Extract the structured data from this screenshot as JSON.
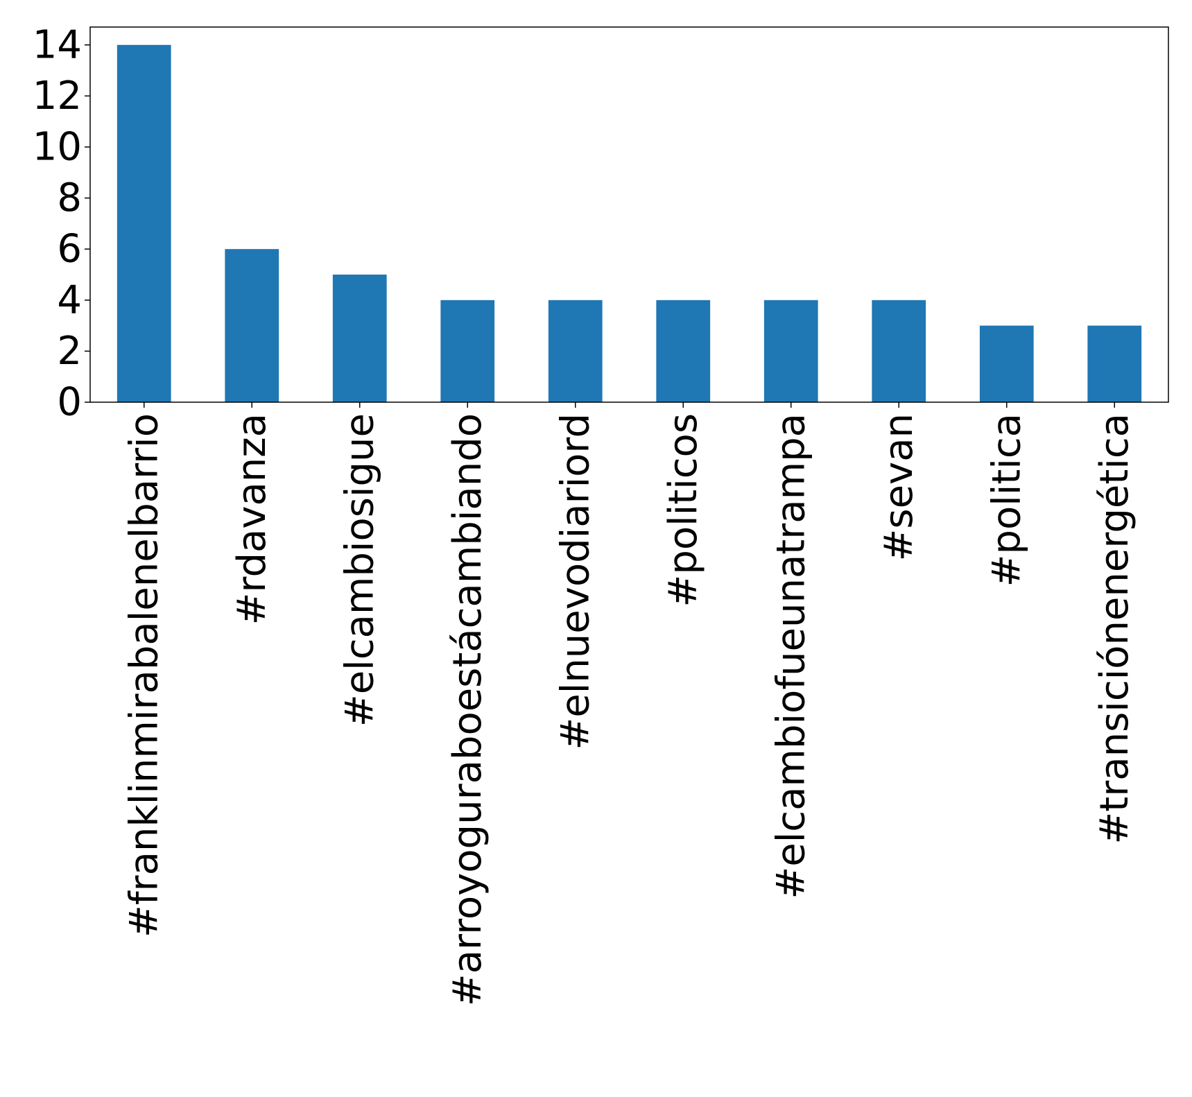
{
  "chart_data": {
    "type": "bar",
    "categories": [
      "#franklinmirabalenelbarrio",
      "#rdavanza",
      "#elcambiosigue",
      "#arroyoguraboestácambiando",
      "#elnuevodiariord",
      "#politicos",
      "#elcambiofueunatrampa",
      "#sevan",
      "#politica",
      "#transiciónenergética"
    ],
    "values": [
      14,
      6,
      5,
      4,
      4,
      4,
      4,
      4,
      3,
      3
    ],
    "title": "",
    "xlabel": "",
    "ylabel": "",
    "ylim": [
      0,
      14.7
    ],
    "yticks": [
      0,
      2,
      4,
      6,
      8,
      10,
      12,
      14
    ],
    "grid": false,
    "legend": "none",
    "bar_color": "#1f77b4"
  }
}
